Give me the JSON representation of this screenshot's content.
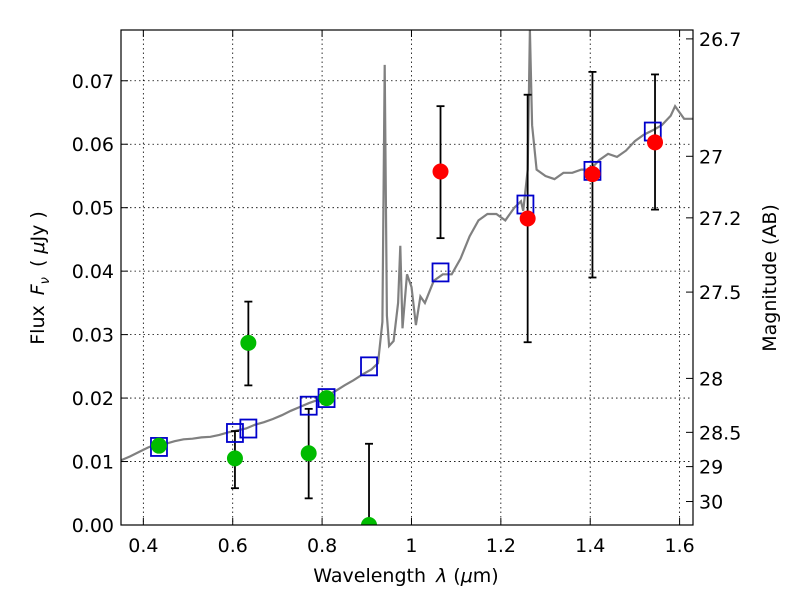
{
  "chart_data": {
    "type": "scatter",
    "xlabel_parts": [
      "Wavelength",
      "λ",
      "(",
      "μ",
      "m)"
    ],
    "ylabel_parts": [
      "Flux",
      "F",
      "ν",
      "(",
      "μ",
      "Jy",
      ")"
    ],
    "y2label": "Magnitude (AB)",
    "xlim": [
      0.35,
      1.63
    ],
    "ylim": [
      0.0,
      0.078
    ],
    "x_ticks": [
      0.4,
      0.6,
      0.8,
      1.0,
      1.2,
      1.4,
      1.6
    ],
    "x_tick_labels": [
      "0.4",
      "0.6",
      "0.8",
      "1",
      "1.2",
      "1.4",
      "1.6"
    ],
    "y_ticks": [
      0.0,
      0.01,
      0.02,
      0.03,
      0.04,
      0.05,
      0.06,
      0.07
    ],
    "y_tick_labels": [
      "0.00",
      "0.01",
      "0.02",
      "0.03",
      "0.04",
      "0.05",
      "0.06",
      "0.07"
    ],
    "y2_ticks": [
      {
        "label": "26.7",
        "flux": 0.0766
      },
      {
        "label": "27",
        "flux": 0.0581
      },
      {
        "label": "27.2",
        "flux": 0.0484
      },
      {
        "label": "27.5",
        "flux": 0.0367
      },
      {
        "label": "28",
        "flux": 0.0231
      },
      {
        "label": "28.5",
        "flux": 0.0146
      },
      {
        "label": "29",
        "flux": 0.0092
      },
      {
        "label": "30",
        "flux": 0.0037
      }
    ],
    "grid": true,
    "colors": {
      "model": "#808080",
      "model_squares": "#0000cc",
      "green_points": "#00bb00",
      "red_points": "#ff0000",
      "errorbar": "#000000"
    },
    "series": [
      {
        "kind": "line",
        "points": [
          [
            0.35,
            0.0102
          ],
          [
            0.37,
            0.0108
          ],
          [
            0.39,
            0.0115
          ],
          [
            0.41,
            0.0122
          ],
          [
            0.43,
            0.0128
          ],
          [
            0.45,
            0.0128
          ],
          [
            0.47,
            0.0132
          ],
          [
            0.49,
            0.0135
          ],
          [
            0.51,
            0.0136
          ],
          [
            0.53,
            0.0138
          ],
          [
            0.55,
            0.0139
          ],
          [
            0.57,
            0.0142
          ],
          [
            0.59,
            0.0146
          ],
          [
            0.61,
            0.0149
          ],
          [
            0.63,
            0.0152
          ],
          [
            0.65,
            0.0158
          ],
          [
            0.67,
            0.0162
          ],
          [
            0.69,
            0.0167
          ],
          [
            0.71,
            0.0173
          ],
          [
            0.73,
            0.018
          ],
          [
            0.75,
            0.0186
          ],
          [
            0.77,
            0.0192
          ],
          [
            0.79,
            0.0197
          ],
          [
            0.81,
            0.0204
          ],
          [
            0.83,
            0.0211
          ],
          [
            0.85,
            0.022
          ],
          [
            0.87,
            0.0228
          ],
          [
            0.89,
            0.0237
          ],
          [
            0.91,
            0.0245
          ],
          [
            0.925,
            0.0255
          ],
          [
            0.935,
            0.032
          ],
          [
            0.94,
            0.0725
          ],
          [
            0.945,
            0.033
          ],
          [
            0.95,
            0.0282
          ],
          [
            0.96,
            0.029
          ],
          [
            0.97,
            0.035
          ],
          [
            0.975,
            0.044
          ],
          [
            0.98,
            0.031
          ],
          [
            0.99,
            0.0395
          ],
          [
            1.0,
            0.0375
          ],
          [
            1.01,
            0.0315
          ],
          [
            1.02,
            0.036
          ],
          [
            1.03,
            0.035
          ],
          [
            1.05,
            0.0385
          ],
          [
            1.07,
            0.0395
          ],
          [
            1.09,
            0.0395
          ],
          [
            1.11,
            0.042
          ],
          [
            1.13,
            0.0455
          ],
          [
            1.15,
            0.048
          ],
          [
            1.17,
            0.049
          ],
          [
            1.19,
            0.049
          ],
          [
            1.21,
            0.048
          ],
          [
            1.23,
            0.05
          ],
          [
            1.245,
            0.051
          ],
          [
            1.25,
            0.0495
          ],
          [
            1.26,
            0.056
          ],
          [
            1.265,
            0.078
          ],
          [
            1.27,
            0.063
          ],
          [
            1.28,
            0.056
          ],
          [
            1.3,
            0.055
          ],
          [
            1.32,
            0.0545
          ],
          [
            1.34,
            0.0555
          ],
          [
            1.36,
            0.0555
          ],
          [
            1.38,
            0.056
          ],
          [
            1.4,
            0.056
          ],
          [
            1.42,
            0.0575
          ],
          [
            1.44,
            0.0585
          ],
          [
            1.46,
            0.058
          ],
          [
            1.48,
            0.059
          ],
          [
            1.5,
            0.0605
          ],
          [
            1.52,
            0.0615
          ],
          [
            1.54,
            0.0622
          ],
          [
            1.56,
            0.063
          ],
          [
            1.58,
            0.0645
          ],
          [
            1.59,
            0.066
          ],
          [
            1.6,
            0.065
          ],
          [
            1.61,
            0.064
          ],
          [
            1.63,
            0.064
          ]
        ]
      },
      {
        "kind": "open-squares",
        "points": [
          [
            0.435,
            0.0123
          ],
          [
            0.605,
            0.0145
          ],
          [
            0.635,
            0.0152
          ],
          [
            0.77,
            0.0188
          ],
          [
            0.81,
            0.02
          ],
          [
            0.905,
            0.025
          ],
          [
            1.065,
            0.0398
          ],
          [
            1.255,
            0.0505
          ],
          [
            1.405,
            0.0558
          ],
          [
            1.54,
            0.062
          ]
        ]
      },
      {
        "kind": "points",
        "color_key": "green_points",
        "points": [
          {
            "x": 0.435,
            "y": 0.0125,
            "err": null
          },
          {
            "x": 0.605,
            "y": 0.0105,
            "err": [
              0.0058,
              0.0148
            ]
          },
          {
            "x": 0.635,
            "y": 0.0287,
            "err": [
              0.022,
              0.0352
            ]
          },
          {
            "x": 0.77,
            "y": 0.0113,
            "err": [
              0.0042,
              0.0183
            ]
          },
          {
            "x": 0.81,
            "y": 0.02,
            "err": null
          },
          {
            "x": 0.905,
            "y": 0.0,
            "err": [
              0.0,
              0.0128
            ]
          }
        ]
      },
      {
        "kind": "points",
        "color_key": "red_points",
        "points": [
          {
            "x": 1.065,
            "y": 0.0557,
            "err": [
              0.0452,
              0.066
            ]
          },
          {
            "x": 1.26,
            "y": 0.0483,
            "err": [
              0.0288,
              0.0678
            ]
          },
          {
            "x": 1.405,
            "y": 0.0553,
            "err": [
              0.039,
              0.0714
            ]
          },
          {
            "x": 1.545,
            "y": 0.0603,
            "err": [
              0.0497,
              0.071
            ]
          }
        ]
      }
    ]
  }
}
